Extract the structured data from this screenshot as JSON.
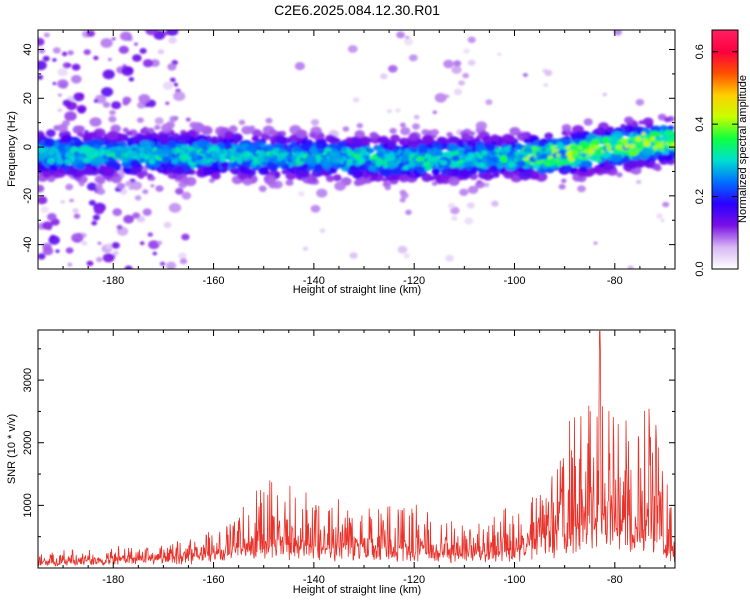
{
  "title": "C2E6.2025.084.12.30.R01",
  "chart_data": [
    {
      "type": "heatmap",
      "xlabel": "Height of straight line (km)",
      "ylabel": "Frequency (Hz)",
      "xlim": [
        -195,
        -68
      ],
      "ylim": [
        -50,
        48
      ],
      "xticks": [
        -180,
        -160,
        -140,
        -120,
        -100,
        -80
      ],
      "xtick_labels": [
        "-180",
        "-160",
        "-140",
        "-120",
        "-100",
        "-80"
      ],
      "yticks": [
        -40,
        -20,
        0,
        20,
        40
      ],
      "ytick_labels": [
        "-40",
        "-20",
        "0",
        "20",
        "40"
      ],
      "colorbar": {
        "label": "Normalized spectral amplitude",
        "range": [
          0.0,
          0.66
        ],
        "ticks": [
          0.0,
          0.2,
          0.4,
          0.6
        ],
        "tick_labels": [
          "0.0",
          "0.2",
          "0.4",
          "0.6"
        ],
        "colors": [
          "#ffffff",
          "#d8b8f4",
          "#7a10e6",
          "#2a00ff",
          "#0070ff",
          "#00e0d0",
          "#10ff40",
          "#c8ff00",
          "#ffd000",
          "#ff5000",
          "#ff0040",
          "#ff2060"
        ]
      },
      "band_center_hz": [
        {
          "x": -195,
          "y": -3
        },
        {
          "x": -170,
          "y": -3
        },
        {
          "x": -140,
          "y": -4
        },
        {
          "x": -120,
          "y": -5
        },
        {
          "x": -100,
          "y": -4
        },
        {
          "x": -90,
          "y": -3
        },
        {
          "x": -80,
          "y": 0
        },
        {
          "x": -70,
          "y": 2
        }
      ],
      "band_halfwidth_hz": 6,
      "peak_amplitude_approx": 0.65,
      "grid": false
    },
    {
      "type": "line",
      "xlabel": "Height of straight line (km)",
      "ylabel": "SNR (10 * v/v)",
      "xlim": [
        -195,
        -68
      ],
      "ylim": [
        0,
        3800
      ],
      "xticks": [
        -180,
        -160,
        -140,
        -120,
        -100,
        -80
      ],
      "xtick_labels": [
        "-180",
        "-160",
        "-140",
        "-120",
        "-100",
        "-80"
      ],
      "yticks": [
        1000,
        2000,
        3000
      ],
      "ytick_labels": [
        "1000",
        "2000",
        "3000"
      ],
      "series": [
        {
          "color": "#e8322a",
          "envelope": [
            {
              "x": -195,
              "base": 100,
              "peak": 300
            },
            {
              "x": -175,
              "base": 150,
              "peak": 350
            },
            {
              "x": -165,
              "base": 180,
              "peak": 500
            },
            {
              "x": -158,
              "base": 250,
              "peak": 700
            },
            {
              "x": -155,
              "base": 350,
              "peak": 1150
            },
            {
              "x": -151,
              "base": 400,
              "peak": 1500
            },
            {
              "x": -140,
              "base": 350,
              "peak": 1250
            },
            {
              "x": -130,
              "base": 300,
              "peak": 950
            },
            {
              "x": -120,
              "base": 280,
              "peak": 1100
            },
            {
              "x": -110,
              "base": 250,
              "peak": 700
            },
            {
              "x": -104,
              "base": 200,
              "peak": 850
            },
            {
              "x": -98,
              "base": 350,
              "peak": 1200
            },
            {
              "x": -94,
              "base": 450,
              "peak": 1600
            },
            {
              "x": -90,
              "base": 500,
              "peak": 2300
            },
            {
              "x": -86,
              "base": 700,
              "peak": 2900
            },
            {
              "x": -83,
              "base": 900,
              "peak": 3750
            },
            {
              "x": -80,
              "base": 800,
              "peak": 3100
            },
            {
              "x": -76,
              "base": 600,
              "peak": 2400
            },
            {
              "x": -72,
              "base": 500,
              "peak": 2600
            },
            {
              "x": -69,
              "base": 300,
              "peak": 1800
            },
            {
              "x": -68,
              "base": 200,
              "peak": 900
            }
          ],
          "max_value_approx": 3780
        }
      ],
      "grid": false
    }
  ]
}
